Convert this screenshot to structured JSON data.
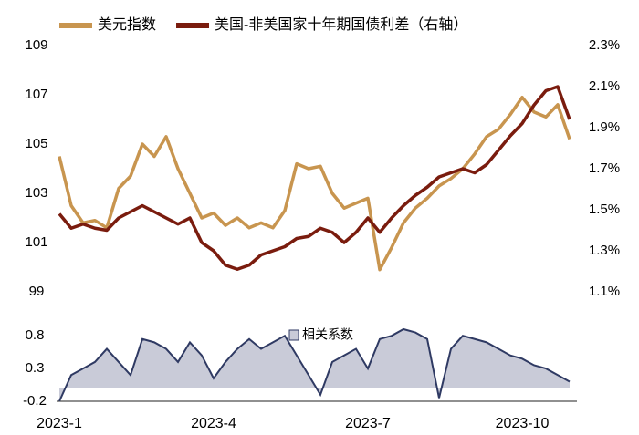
{
  "chart_data": [
    {
      "type": "line",
      "series": [
        {
          "name": "美元指数",
          "color": "#c8954f",
          "values": [
            104.5,
            102.5,
            101.8,
            101.9,
            101.6,
            103.2,
            103.7,
            105.0,
            104.5,
            105.3,
            104.0,
            103.0,
            102.0,
            102.2,
            101.7,
            102.0,
            101.6,
            101.8,
            101.6,
            102.3,
            104.2,
            104.0,
            104.1,
            103.0,
            102.4,
            102.6,
            102.8,
            99.9,
            100.8,
            101.8,
            102.4,
            102.8,
            103.3,
            103.6,
            104.0,
            104.6,
            105.3,
            105.6,
            106.2,
            106.9,
            106.3,
            106.1,
            106.6,
            105.2
          ]
        },
        {
          "name": "美国-非美国家十年期国债利差（右轴）",
          "color": "#7a1c0e",
          "axis": "y2",
          "values": [
            1.48,
            1.41,
            1.43,
            1.41,
            1.4,
            1.46,
            1.49,
            1.52,
            1.49,
            1.46,
            1.43,
            1.46,
            1.34,
            1.3,
            1.23,
            1.21,
            1.23,
            1.28,
            1.3,
            1.32,
            1.36,
            1.37,
            1.41,
            1.39,
            1.34,
            1.39,
            1.46,
            1.39,
            1.46,
            1.52,
            1.57,
            1.61,
            1.66,
            1.68,
            1.7,
            1.68,
            1.72,
            1.79,
            1.86,
            1.92,
            2.01,
            2.08,
            2.1,
            1.94
          ]
        }
      ],
      "ylim": [
        99,
        109
      ],
      "yticks": [
        99,
        101,
        103,
        105,
        107,
        109
      ],
      "y2lim": [
        1.1,
        2.3
      ],
      "y2ticks": [
        {
          "value": 1.1,
          "label": "1.1%"
        },
        {
          "value": 1.3,
          "label": "1.3%"
        },
        {
          "value": 1.5,
          "label": "1.5%"
        },
        {
          "value": 1.7,
          "label": "1.7%"
        },
        {
          "value": 1.9,
          "label": "1.9%"
        },
        {
          "value": 2.1,
          "label": "2.1%"
        },
        {
          "value": 2.3,
          "label": "2.3%"
        }
      ]
    },
    {
      "type": "area",
      "categories": [
        "2023-1",
        null,
        null,
        null,
        null,
        null,
        null,
        null,
        null,
        null,
        null,
        null,
        null,
        "2023-4",
        null,
        null,
        null,
        null,
        null,
        null,
        null,
        null,
        null,
        null,
        null,
        null,
        "2023-7",
        null,
        null,
        null,
        null,
        null,
        null,
        null,
        null,
        null,
        null,
        null,
        null,
        "2023-10",
        null,
        null,
        null,
        null
      ],
      "series": [
        {
          "name": "相关系数",
          "color": "#2f3a63",
          "fill": "#c9cbd8",
          "values": [
            -0.2,
            0.2,
            0.3,
            0.4,
            0.6,
            0.4,
            0.2,
            0.75,
            0.7,
            0.6,
            0.4,
            0.7,
            0.5,
            0.15,
            0.4,
            0.6,
            0.75,
            0.6,
            0.7,
            0.8,
            0.5,
            0.2,
            -0.1,
            0.4,
            0.5,
            0.6,
            0.3,
            0.75,
            0.8,
            0.9,
            0.85,
            0.75,
            -0.15,
            0.6,
            0.8,
            0.75,
            0.7,
            0.6,
            0.5,
            0.45,
            0.35,
            0.3,
            0.2,
            0.1
          ]
        }
      ],
      "ylim": [
        -0.2,
        0.9
      ],
      "yticks": [
        -0.2,
        0.3,
        0.8
      ]
    }
  ]
}
